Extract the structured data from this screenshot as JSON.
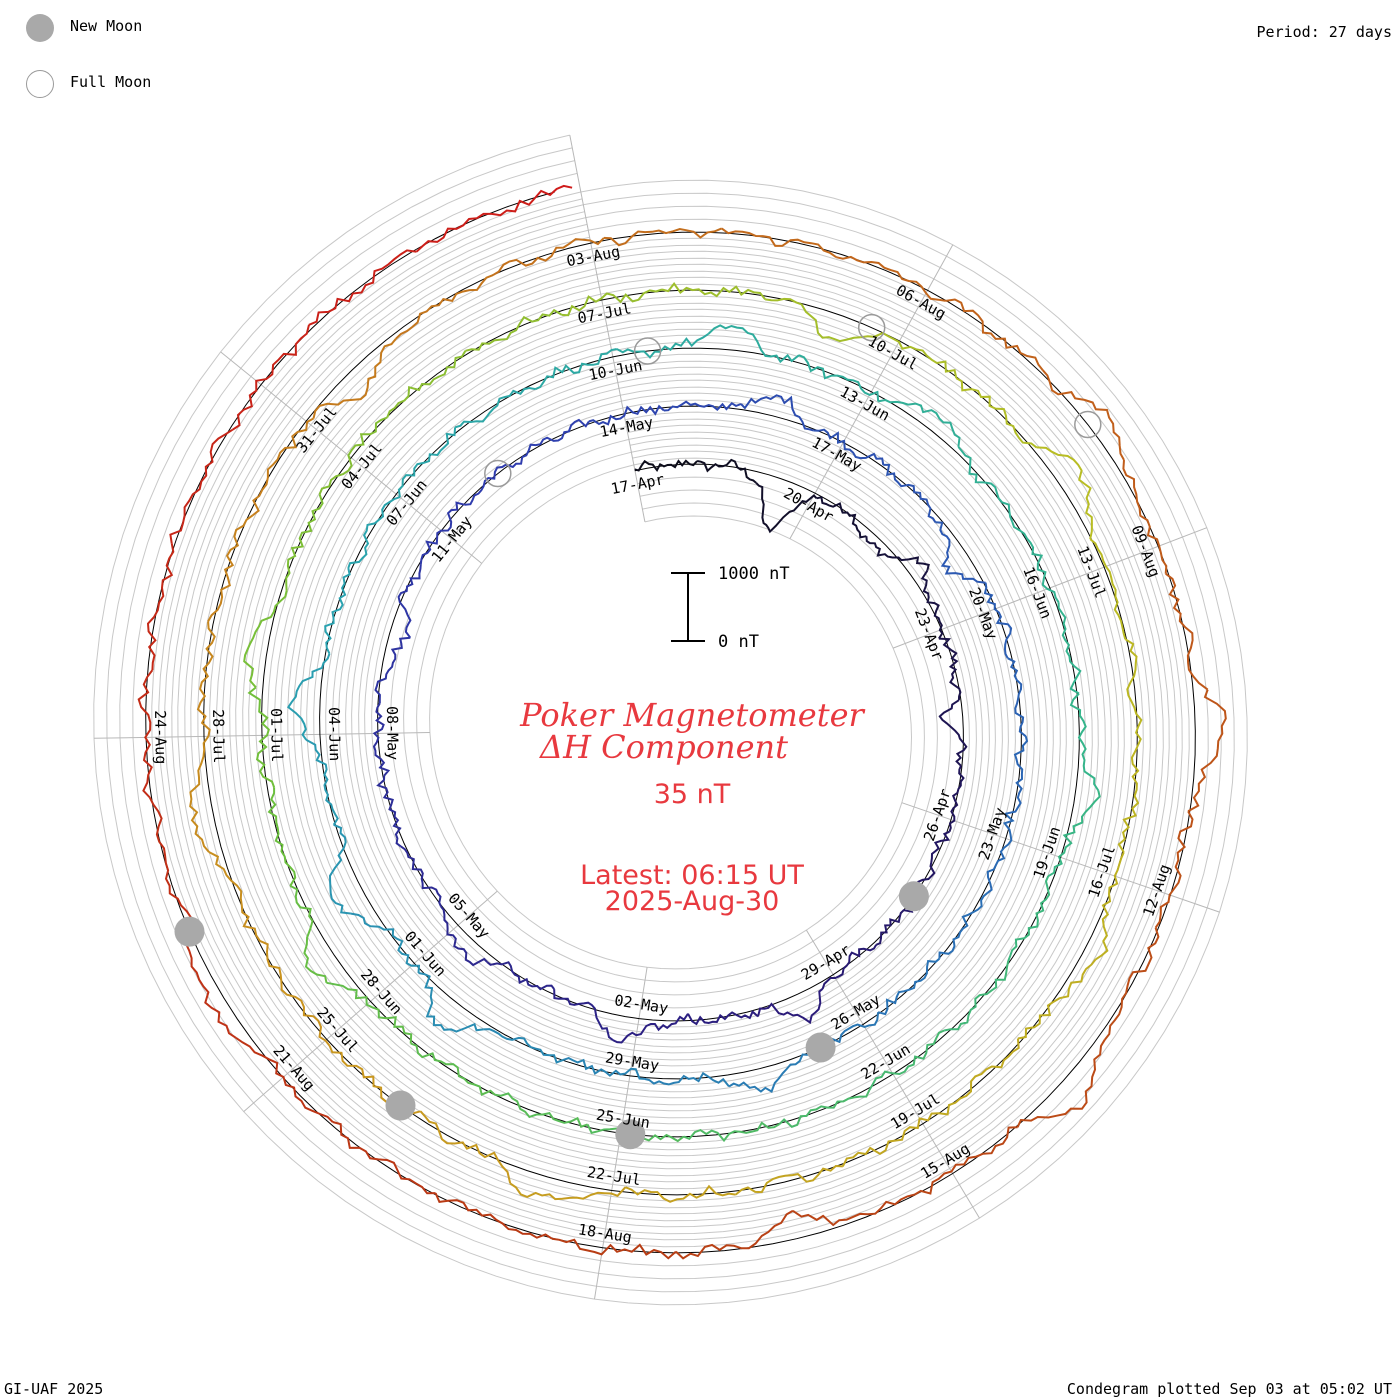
{
  "legend": {
    "new_moon": {
      "label": "New Moon",
      "color": "#a9a9a9"
    },
    "full_moon": {
      "label": "Full Moon",
      "color": "#9a9a9a"
    }
  },
  "header": {
    "period": "Period: 27 days"
  },
  "footer": {
    "credit": "GI-UAF 2025",
    "plotted": "Condegram plotted Sep 03 at 05:02 UT"
  },
  "center": {
    "title_line1": "Poker Magnetometer",
    "title_line2": "ΔH Component",
    "value": "35 nT",
    "latest_line1": "Latest: 06:15 UT",
    "latest_line2": "2025-Aug-30"
  },
  "chart_data": {
    "type": "line",
    "subtype": "condegram-spiral",
    "title": "Poker Magnetometer ΔH Component",
    "period_days": 27,
    "scale_bar": {
      "top_label": "1000 nT",
      "bottom_label": "0 nT",
      "top_value": 1000,
      "bottom_value": 0
    },
    "start_date": "2025-Apr-17",
    "end_date": "2025-Aug-30",
    "start_angle_deg": -101,
    "span_days": 135,
    "base_radius": 262,
    "pitch_per_cycle": 58,
    "current_value_nT": 35,
    "color_stops": [
      "#0d0d1a",
      "#2b1b7a",
      "#2f3cae",
      "#2a6fb5",
      "#2aa3b0",
      "#35b58a",
      "#6cbf3d",
      "#b9bd24",
      "#c9961f",
      "#c2651c",
      "#b83c14",
      "#d01a1a"
    ],
    "date_labels": [
      {
        "text": "17-Apr",
        "day": 0
      },
      {
        "text": "20-Apr",
        "day": 3
      },
      {
        "text": "23-Apr",
        "day": 6
      },
      {
        "text": "26-Apr",
        "day": 9
      },
      {
        "text": "29-Apr",
        "day": 12
      },
      {
        "text": "02-May",
        "day": 15
      },
      {
        "text": "05-May",
        "day": 18
      },
      {
        "text": "08-May",
        "day": 21
      },
      {
        "text": "11-May",
        "day": 24
      },
      {
        "text": "14-May",
        "day": 27
      },
      {
        "text": "17-May",
        "day": 30
      },
      {
        "text": "20-May",
        "day": 33
      },
      {
        "text": "23-May",
        "day": 36
      },
      {
        "text": "26-May",
        "day": 39
      },
      {
        "text": "29-May",
        "day": 42
      },
      {
        "text": "01-Jun",
        "day": 45
      },
      {
        "text": "04-Jun",
        "day": 48
      },
      {
        "text": "07-Jun",
        "day": 51
      },
      {
        "text": "10-Jun",
        "day": 54
      },
      {
        "text": "13-Jun",
        "day": 57
      },
      {
        "text": "16-Jun",
        "day": 60
      },
      {
        "text": "19-Jun",
        "day": 63
      },
      {
        "text": "22-Jun",
        "day": 66
      },
      {
        "text": "25-Jun",
        "day": 69
      },
      {
        "text": "28-Jun",
        "day": 72
      },
      {
        "text": "01-Jul",
        "day": 75
      },
      {
        "text": "04-Jul",
        "day": 78
      },
      {
        "text": "07-Jul",
        "day": 81
      },
      {
        "text": "10-Jul",
        "day": 84
      },
      {
        "text": "13-Jul",
        "day": 87
      },
      {
        "text": "16-Jul",
        "day": 90
      },
      {
        "text": "19-Jul",
        "day": 93
      },
      {
        "text": "22-Jul",
        "day": 96
      },
      {
        "text": "25-Jul",
        "day": 99
      },
      {
        "text": "28-Jul",
        "day": 102
      },
      {
        "text": "31-Jul",
        "day": 105
      },
      {
        "text": "03-Aug",
        "day": 108
      },
      {
        "text": "06-Aug",
        "day": 111
      },
      {
        "text": "09-Aug",
        "day": 114
      },
      {
        "text": "12-Aug",
        "day": 117
      },
      {
        "text": "15-Aug",
        "day": 120
      },
      {
        "text": "18-Aug",
        "day": 123
      },
      {
        "text": "21-Aug",
        "day": 126
      },
      {
        "text": "24-Aug",
        "day": 129
      }
    ],
    "new_moons_day": [
      10.3,
      39.6,
      68.9,
      98.1,
      127.4
    ],
    "full_moons_day": [
      25.1,
      54.4,
      83.7,
      112.8
    ],
    "disturbances_nT": [
      {
        "day": 2.5,
        "amplitude": -760
      },
      {
        "day": 4.3,
        "amplitude": -180
      },
      {
        "day": 5.0,
        "amplitude": 210
      },
      {
        "day": 7.4,
        "amplitude": -230
      },
      {
        "day": 12.6,
        "amplitude": 360
      },
      {
        "day": 15.2,
        "amplitude": 340
      },
      {
        "day": 17.7,
        "amplitude": 260
      },
      {
        "day": 22.4,
        "amplitude": -250
      },
      {
        "day": 29.0,
        "amplitude": 280
      },
      {
        "day": 32.2,
        "amplitude": -330
      },
      {
        "day": 40.4,
        "amplitude": 320
      },
      {
        "day": 44.3,
        "amplitude": 430
      },
      {
        "day": 46.1,
        "amplitude": 470
      },
      {
        "day": 48.3,
        "amplitude": 420
      },
      {
        "day": 55.3,
        "amplitude": 330
      },
      {
        "day": 57.8,
        "amplitude": 260
      },
      {
        "day": 62.3,
        "amplitude": 300
      },
      {
        "day": 72.6,
        "amplitude": 380
      },
      {
        "day": 75.8,
        "amplitude": 300
      },
      {
        "day": 83.4,
        "amplitude": -360
      },
      {
        "day": 86.1,
        "amplitude": 380
      },
      {
        "day": 90.8,
        "amplitude": 260
      },
      {
        "day": 96.6,
        "amplitude": 340
      },
      {
        "day": 101.3,
        "amplitude": 300
      },
      {
        "day": 105.6,
        "amplitude": -330
      },
      {
        "day": 112.9,
        "amplitude": 320
      },
      {
        "day": 115.6,
        "amplitude": 430
      },
      {
        "day": 118.8,
        "amplitude": 410
      },
      {
        "day": 121.4,
        "amplitude": -310
      },
      {
        "day": 126.8,
        "amplitude": 250
      }
    ]
  }
}
